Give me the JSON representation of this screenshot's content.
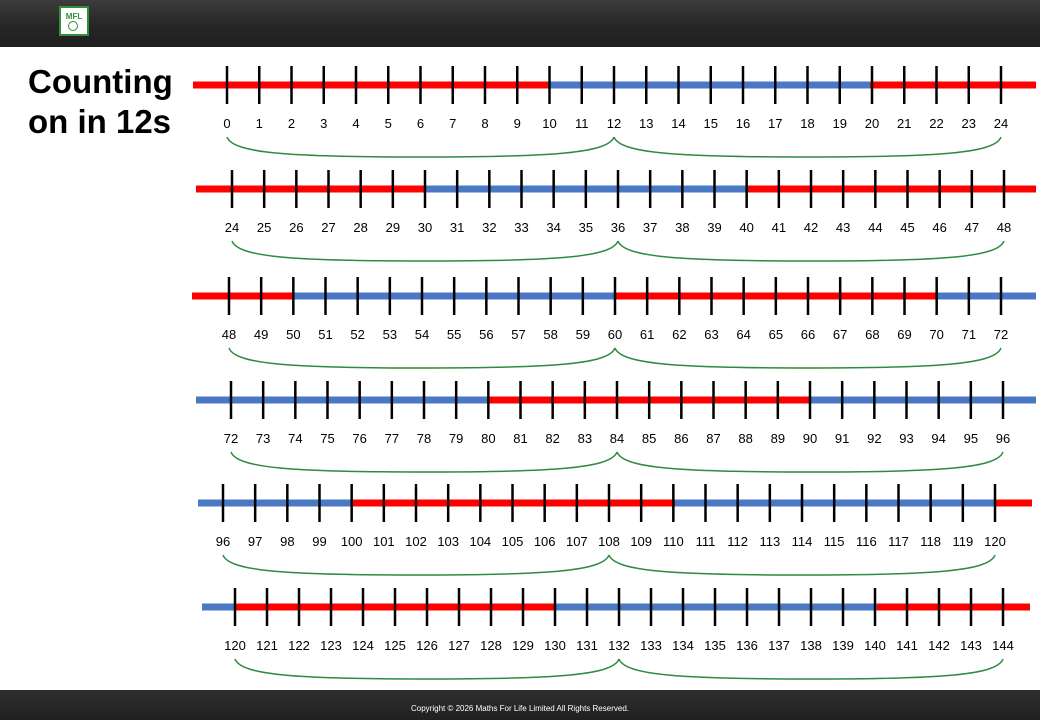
{
  "header": {
    "logo_text": "MFL"
  },
  "title": {
    "line1": "Counting",
    "line2": "on in 12s"
  },
  "footer": {
    "copyright": "Copyright © 2026 Maths For Life Limited All Rights Reserved."
  },
  "colors": {
    "red": "#ff0000",
    "blue": "#4a78c4",
    "tick": "#000000",
    "arc": "#2e8b3f"
  },
  "number_lines": [
    {
      "start": 0,
      "end": 24,
      "jump": 12,
      "segments": [
        "red",
        "blue",
        "red"
      ]
    },
    {
      "start": 24,
      "end": 48,
      "jump": 12,
      "segments": [
        "red",
        "blue",
        "red"
      ]
    },
    {
      "start": 48,
      "end": 72,
      "jump": 12,
      "segments": [
        "red",
        "blue",
        "red",
        "blue"
      ]
    },
    {
      "start": 72,
      "end": 96,
      "jump": 12,
      "segments": [
        "blue",
        "red",
        "blue"
      ]
    },
    {
      "start": 96,
      "end": 120,
      "jump": 12,
      "segments": [
        "blue",
        "red",
        "blue",
        "red"
      ]
    },
    {
      "start": 120,
      "end": 144,
      "jump": 12,
      "segments": [
        "blue",
        "red",
        "blue",
        "red"
      ]
    }
  ]
}
